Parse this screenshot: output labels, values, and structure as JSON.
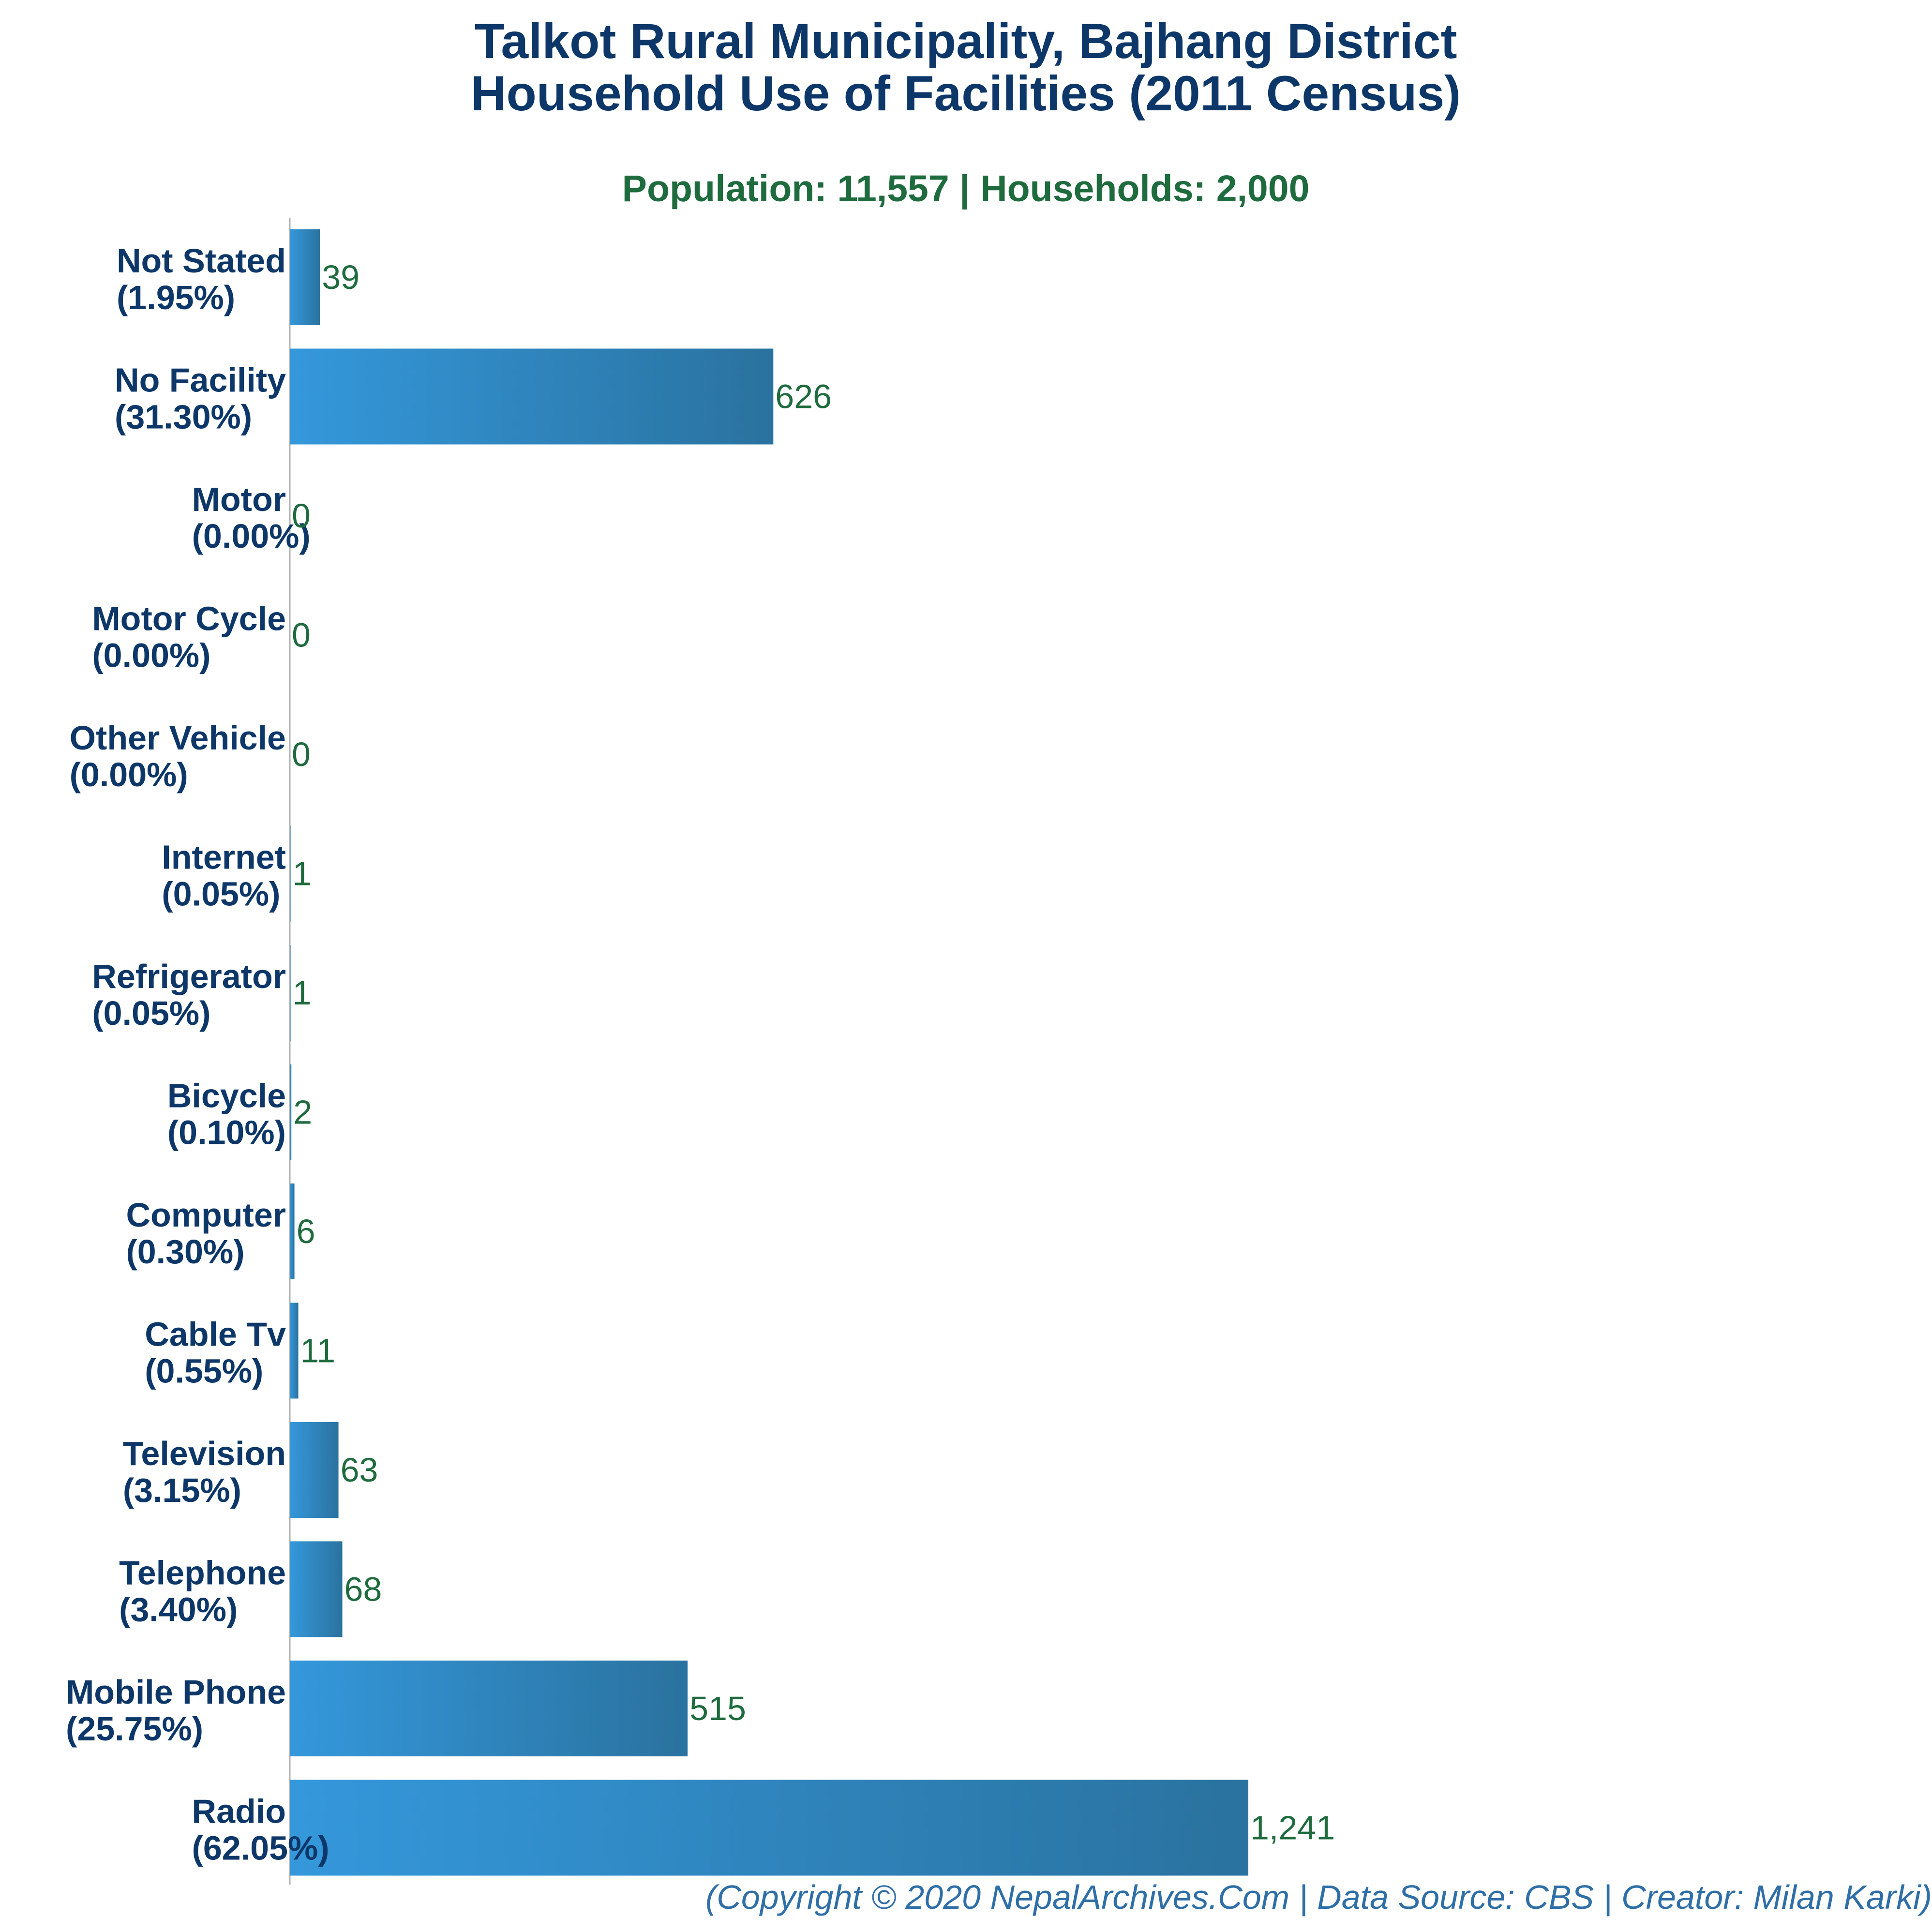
{
  "chart_data": {
    "type": "bar",
    "orientation": "horizontal",
    "title": "Talkot Rural Municipality, Bajhang District",
    "title_line2": "Household Use of Facilities (2011 Census)",
    "subtitle": "Population: 11,557 | Households: 2,000",
    "footer": "(Copyright © 2020 NepalArchives.Com | Data Source: CBS | Creator: Milan Karki)",
    "xlabel": "",
    "ylabel": "",
    "xlim": [
      0,
      1241
    ],
    "grid": false,
    "legend": "none",
    "categories": [
      "Not Stated",
      "No Facility",
      "Motor",
      "Motor Cycle",
      "Other Vehicle",
      "Internet",
      "Refrigerator",
      "Bicycle",
      "Computer",
      "Cable Tv",
      "Television",
      "Telephone",
      "Mobile Phone",
      "Radio"
    ],
    "percent_labels": [
      "(1.95%)",
      "(31.30%)",
      "(0.00%)",
      "(0.00%)",
      "(0.00%)",
      "(0.05%)",
      "(0.05%)",
      "(0.10%)",
      "(0.30%)",
      "(0.55%)",
      "(3.15%)",
      "(3.40%)",
      "(25.75%)",
      "(62.05%)"
    ],
    "values": [
      39,
      626,
      0,
      0,
      0,
      1,
      1,
      2,
      6,
      11,
      63,
      68,
      515,
      1241
    ],
    "value_labels": [
      "39",
      "626",
      "0",
      "0",
      "0",
      "1",
      "1",
      "2",
      "6",
      "11",
      "63",
      "68",
      "515",
      "1,241"
    ]
  },
  "colors": {
    "title": "#0d3768",
    "subtitle": "#1e6b3d",
    "category_label": "#0d3768",
    "value_label": "#1e6b3d",
    "footer": "#2f6fa8",
    "bar_gradient_start": "#3498db",
    "bar_gradient_end": "#2a729f",
    "axis": "#b0b0b0"
  }
}
